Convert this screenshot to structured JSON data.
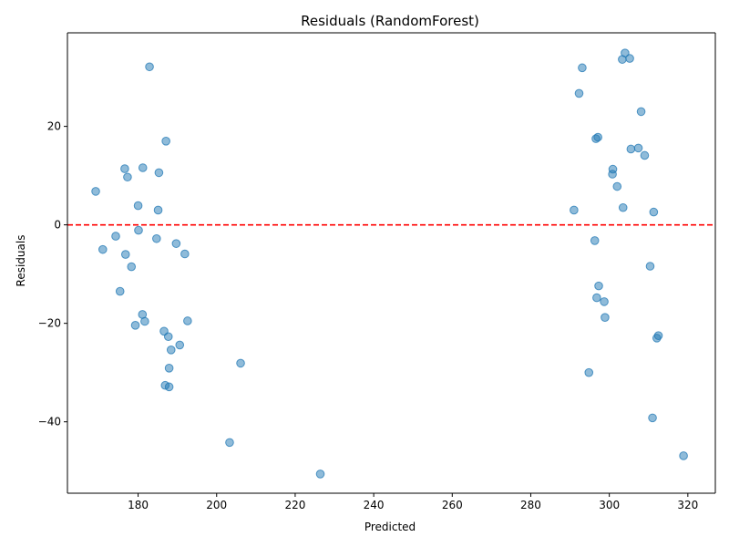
{
  "chart_data": {
    "type": "scatter",
    "title": "Residuals (RandomForest)",
    "xlabel": "Predicted",
    "ylabel": "Residuals",
    "xlim": [
      162,
      327
    ],
    "ylim": [
      -54.5,
      39.0
    ],
    "xticks": [
      180,
      200,
      220,
      240,
      260,
      280,
      300,
      320
    ],
    "yticks": [
      -40,
      -20,
      0,
      20
    ],
    "xtick_labels": [
      "180",
      "200",
      "220",
      "240",
      "260",
      "280",
      "300",
      "320"
    ],
    "ytick_labels": [
      "−40",
      "−20",
      "0",
      "20"
    ],
    "grid": false,
    "reference_line": {
      "y": 0,
      "style": "dashed",
      "color": "#ff0000"
    },
    "marker_color": "#1f77b4",
    "marker_alpha": 0.5,
    "points": [
      {
        "x": 169.2,
        "y": 6.8
      },
      {
        "x": 171.0,
        "y": -5.0
      },
      {
        "x": 174.3,
        "y": -2.3
      },
      {
        "x": 175.4,
        "y": -13.5
      },
      {
        "x": 176.6,
        "y": 11.4
      },
      {
        "x": 176.8,
        "y": -6.0
      },
      {
        "x": 177.3,
        "y": 9.7
      },
      {
        "x": 178.3,
        "y": -8.5
      },
      {
        "x": 179.3,
        "y": -20.4
      },
      {
        "x": 180.0,
        "y": 3.9
      },
      {
        "x": 180.1,
        "y": -1.1
      },
      {
        "x": 181.1,
        "y": -18.2
      },
      {
        "x": 181.2,
        "y": 11.6
      },
      {
        "x": 181.7,
        "y": -19.6
      },
      {
        "x": 182.9,
        "y": 32.1
      },
      {
        "x": 184.7,
        "y": -2.8
      },
      {
        "x": 185.1,
        "y": 3.0
      },
      {
        "x": 185.3,
        "y": 10.6
      },
      {
        "x": 186.6,
        "y": -21.6
      },
      {
        "x": 186.9,
        "y": -32.6
      },
      {
        "x": 187.1,
        "y": 17.0
      },
      {
        "x": 187.7,
        "y": -22.7
      },
      {
        "x": 187.9,
        "y": -32.9
      },
      {
        "x": 187.9,
        "y": -29.1
      },
      {
        "x": 188.4,
        "y": -25.4
      },
      {
        "x": 189.7,
        "y": -3.8
      },
      {
        "x": 190.6,
        "y": -24.4
      },
      {
        "x": 191.9,
        "y": -5.9
      },
      {
        "x": 192.6,
        "y": -19.5
      },
      {
        "x": 203.3,
        "y": -44.2
      },
      {
        "x": 206.1,
        "y": -28.1
      },
      {
        "x": 226.4,
        "y": -50.6
      },
      {
        "x": 291.0,
        "y": 3.0
      },
      {
        "x": 292.3,
        "y": 26.7
      },
      {
        "x": 293.1,
        "y": 31.9
      },
      {
        "x": 294.8,
        "y": -30.0
      },
      {
        "x": 296.3,
        "y": -3.2
      },
      {
        "x": 296.6,
        "y": 17.5
      },
      {
        "x": 296.8,
        "y": -14.8
      },
      {
        "x": 297.1,
        "y": 17.8
      },
      {
        "x": 297.3,
        "y": -12.4
      },
      {
        "x": 298.7,
        "y": -15.6
      },
      {
        "x": 298.9,
        "y": -18.8
      },
      {
        "x": 300.8,
        "y": 10.3
      },
      {
        "x": 300.9,
        "y": 11.3
      },
      {
        "x": 302.0,
        "y": 7.8
      },
      {
        "x": 303.3,
        "y": 33.6
      },
      {
        "x": 303.5,
        "y": 3.5
      },
      {
        "x": 304.0,
        "y": 34.9
      },
      {
        "x": 305.2,
        "y": 33.8
      },
      {
        "x": 305.5,
        "y": 15.4
      },
      {
        "x": 307.4,
        "y": 15.6
      },
      {
        "x": 308.1,
        "y": 23.0
      },
      {
        "x": 309.0,
        "y": 14.1
      },
      {
        "x": 310.4,
        "y": -8.4
      },
      {
        "x": 311.0,
        "y": -39.2
      },
      {
        "x": 311.3,
        "y": 2.6
      },
      {
        "x": 312.1,
        "y": -23.0
      },
      {
        "x": 312.5,
        "y": -22.5
      },
      {
        "x": 318.9,
        "y": -46.9
      }
    ]
  }
}
